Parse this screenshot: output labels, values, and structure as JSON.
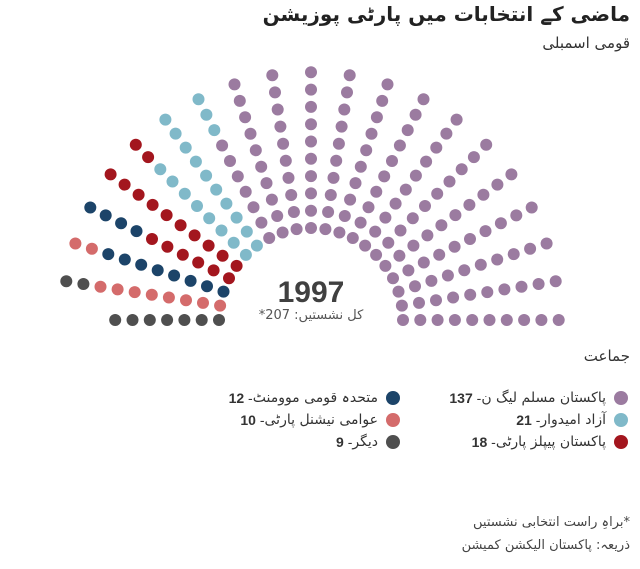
{
  "title": "ماضی کے انتخابات میں پارٹی پوزیشن",
  "subtitle": "قومی اسمبلی",
  "legend_title": "جماعت",
  "footnote": "*براہِ راست انتخابی نشستیں",
  "source": "ذریعہ: پاکستان الیکشن کمیشن",
  "chart_data": {
    "type": "parliament",
    "year": "1997",
    "total_label": "کل نشستیں: 207*",
    "total": 207,
    "series": [
      {
        "name": "پاکستان مسلم لیگ ن",
        "value": 137,
        "color": "#9b7ba0"
      },
      {
        "name": "آزاد امیدوار",
        "value": 21,
        "color": "#80b9c9"
      },
      {
        "name": "پاکستان پیپلز پارٹی",
        "value": 18,
        "color": "#a3161e"
      },
      {
        "name": "متحدہ قومی موومنٹ",
        "value": 12,
        "color": "#1c4469"
      },
      {
        "name": "عوامی نیشنل پارٹی",
        "value": 10,
        "color": "#d46b6b"
      },
      {
        "name": "دیگر",
        "value": 9,
        "color": "#4f4f4f"
      }
    ]
  }
}
